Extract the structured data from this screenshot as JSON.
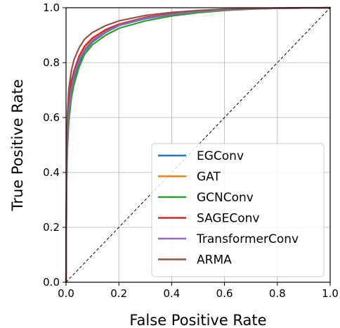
{
  "chart_data": {
    "type": "line",
    "xlabel": "False Positive Rate",
    "ylabel": "True Positive Rate",
    "xlim": [
      0.0,
      1.0
    ],
    "ylim": [
      0.0,
      1.0
    ],
    "xticks": [
      "0.0",
      "0.2",
      "0.4",
      "0.6",
      "0.8",
      "1.0"
    ],
    "yticks": [
      "0.0",
      "0.2",
      "0.4",
      "0.6",
      "0.8",
      "1.0"
    ],
    "grid": true,
    "legend_position": "lower-right",
    "series": [
      {
        "name": "EGConv",
        "color": "#1f77b4",
        "x": [
          0,
          0.002,
          0.005,
          0.01,
          0.02,
          0.03,
          0.05,
          0.07,
          0.1,
          0.15,
          0.2,
          0.3,
          0.4,
          0.5,
          0.6,
          0.7,
          0.8,
          0.9,
          1.0
        ],
        "y": [
          0,
          0.35,
          0.5,
          0.6,
          0.69,
          0.74,
          0.8,
          0.84,
          0.875,
          0.91,
          0.935,
          0.96,
          0.975,
          0.985,
          0.992,
          0.996,
          0.998,
          0.999,
          1.0
        ]
      },
      {
        "name": "GAT",
        "color": "#ff7f0e",
        "x": [
          0,
          0.002,
          0.005,
          0.01,
          0.02,
          0.03,
          0.05,
          0.07,
          0.1,
          0.15,
          0.2,
          0.3,
          0.4,
          0.5,
          0.6,
          0.7,
          0.8,
          0.9,
          1.0
        ],
        "y": [
          0,
          0.38,
          0.53,
          0.63,
          0.71,
          0.76,
          0.815,
          0.85,
          0.885,
          0.915,
          0.938,
          0.963,
          0.977,
          0.986,
          0.993,
          0.996,
          0.998,
          0.999,
          1.0
        ]
      },
      {
        "name": "GCNConv",
        "color": "#2ca02c",
        "x": [
          0,
          0.002,
          0.005,
          0.01,
          0.02,
          0.03,
          0.05,
          0.07,
          0.1,
          0.15,
          0.2,
          0.3,
          0.4,
          0.5,
          0.6,
          0.7,
          0.8,
          0.9,
          1.0
        ],
        "y": [
          0,
          0.34,
          0.48,
          0.58,
          0.67,
          0.72,
          0.785,
          0.83,
          0.865,
          0.9,
          0.925,
          0.952,
          0.97,
          0.982,
          0.99,
          0.995,
          0.998,
          0.999,
          1.0
        ]
      },
      {
        "name": "SAGEConv",
        "color": "#d62728",
        "x": [
          0,
          0.002,
          0.005,
          0.01,
          0.02,
          0.03,
          0.05,
          0.07,
          0.1,
          0.15,
          0.2,
          0.3,
          0.4,
          0.5,
          0.6,
          0.7,
          0.8,
          0.9,
          1.0
        ],
        "y": [
          0,
          0.4,
          0.55,
          0.65,
          0.73,
          0.77,
          0.825,
          0.86,
          0.89,
          0.92,
          0.94,
          0.965,
          0.978,
          0.987,
          0.993,
          0.996,
          0.998,
          0.999,
          1.0
        ]
      },
      {
        "name": "TransformerConv",
        "color": "#9467bd",
        "x": [
          0,
          0.002,
          0.005,
          0.01,
          0.02,
          0.03,
          0.05,
          0.07,
          0.1,
          0.15,
          0.2,
          0.3,
          0.4,
          0.5,
          0.6,
          0.7,
          0.8,
          0.9,
          1.0
        ],
        "y": [
          0,
          0.37,
          0.52,
          0.62,
          0.7,
          0.75,
          0.81,
          0.845,
          0.88,
          0.912,
          0.936,
          0.962,
          0.976,
          0.986,
          0.992,
          0.996,
          0.998,
          0.999,
          1.0
        ]
      },
      {
        "name": "ARMA",
        "color": "#8c564b",
        "x": [
          0,
          0.002,
          0.005,
          0.01,
          0.02,
          0.03,
          0.05,
          0.07,
          0.1,
          0.15,
          0.2,
          0.3,
          0.4,
          0.5,
          0.6,
          0.7,
          0.8,
          0.9,
          1.0
        ],
        "y": [
          0,
          0.45,
          0.6,
          0.7,
          0.77,
          0.81,
          0.855,
          0.885,
          0.91,
          0.935,
          0.952,
          0.972,
          0.983,
          0.99,
          0.995,
          0.997,
          0.999,
          1.0,
          1.0
        ]
      }
    ],
    "diagonal": {
      "x": [
        0,
        1
      ],
      "y": [
        0,
        1
      ],
      "color": "#000000",
      "style": "dashed"
    }
  }
}
